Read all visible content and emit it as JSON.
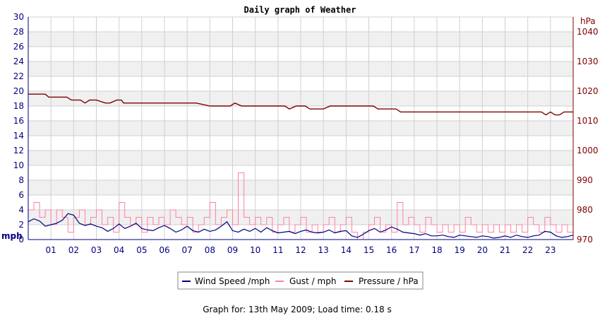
{
  "chart_data": {
    "type": "line",
    "title": "Daily graph of Weather",
    "footer": "Graph for: 13th May 2009; Load time: 0.18 s",
    "x_ticks": [
      "01",
      "02",
      "03",
      "04",
      "05",
      "06",
      "07",
      "08",
      "09",
      "10",
      "11",
      "12",
      "13",
      "14",
      "15",
      "16",
      "17",
      "18",
      "19",
      "20",
      "21",
      "22",
      "23"
    ],
    "x_range_hours": [
      0,
      24
    ],
    "y_left": {
      "unit": "mph",
      "range": [
        0,
        30
      ],
      "ticks": [
        0,
        2,
        4,
        6,
        8,
        10,
        12,
        14,
        16,
        18,
        20,
        22,
        24,
        26,
        28,
        30
      ]
    },
    "y_right": {
      "unit": "hPa",
      "range": [
        970,
        1045
      ],
      "ticks": [
        970,
        980,
        990,
        1000,
        1010,
        1020,
        1030,
        1040
      ]
    },
    "grid": true,
    "legend_position": "bottom-center",
    "colors": {
      "wind": "#000080",
      "gust": "#ff80a0",
      "pressure": "#800000",
      "band": "#f0f0f0",
      "grid": "#d0d0d0"
    },
    "series": [
      {
        "name": "Wind Speed /mph",
        "axis": "left",
        "x": [
          0,
          0.25,
          0.5,
          0.75,
          1,
          1.25,
          1.5,
          1.75,
          2,
          2.25,
          2.5,
          2.75,
          3,
          3.25,
          3.5,
          3.75,
          4,
          4.25,
          4.5,
          4.75,
          5,
          5.25,
          5.5,
          5.75,
          6,
          6.25,
          6.5,
          6.75,
          7,
          7.25,
          7.5,
          7.75,
          8,
          8.25,
          8.5,
          8.75,
          9,
          9.25,
          9.5,
          9.75,
          10,
          10.25,
          10.5,
          10.75,
          11,
          11.25,
          11.5,
          11.75,
          12,
          12.25,
          12.5,
          12.75,
          13,
          13.25,
          13.5,
          13.75,
          14,
          14.25,
          14.5,
          14.75,
          15,
          15.25,
          15.5,
          15.75,
          16,
          16.25,
          16.5,
          16.75,
          17,
          17.25,
          17.5,
          17.75,
          18,
          18.25,
          18.5,
          18.75,
          19,
          19.25,
          19.5,
          19.75,
          20,
          20.25,
          20.5,
          20.75,
          21,
          21.25,
          21.5,
          21.75,
          22,
          22.25,
          22.5,
          22.75,
          23,
          23.25,
          23.5,
          23.75,
          24
        ],
        "y": [
          2.4,
          2.8,
          2.5,
          1.8,
          2.0,
          2.2,
          2.6,
          3.5,
          3.3,
          2.2,
          1.9,
          2.1,
          1.8,
          1.6,
          1.1,
          1.5,
          2.1,
          1.5,
          1.8,
          2.2,
          1.5,
          1.3,
          1.2,
          1.6,
          1.9,
          1.5,
          1.0,
          1.3,
          1.8,
          1.2,
          1.0,
          1.4,
          1.1,
          1.3,
          1.8,
          2.4,
          1.2,
          1.0,
          1.4,
          1.1,
          1.5,
          1.0,
          1.6,
          1.2,
          0.9,
          1.0,
          1.1,
          0.8,
          1.1,
          1.3,
          1.0,
          0.9,
          1.0,
          1.3,
          0.9,
          1.1,
          1.2,
          0.5,
          0.3,
          0.7,
          1.2,
          1.5,
          1.0,
          1.3,
          1.7,
          1.4,
          1.0,
          0.9,
          0.8,
          0.6,
          0.8,
          0.5,
          0.5,
          0.6,
          0.4,
          0.3,
          0.6,
          0.5,
          0.4,
          0.3,
          0.5,
          0.4,
          0.2,
          0.3,
          0.5,
          0.3,
          0.6,
          0.4,
          0.3,
          0.5,
          0.6,
          1.1,
          1.0,
          0.5,
          0.3,
          0.4,
          0.6
        ]
      },
      {
        "name": "Gust / mph",
        "axis": "left",
        "x": [
          0,
          0.25,
          0.5,
          0.75,
          1,
          1.25,
          1.5,
          1.75,
          2,
          2.25,
          2.5,
          2.75,
          3,
          3.25,
          3.5,
          3.75,
          4,
          4.25,
          4.5,
          4.75,
          5,
          5.25,
          5.5,
          5.75,
          6,
          6.25,
          6.5,
          6.75,
          7,
          7.25,
          7.5,
          7.75,
          8,
          8.25,
          8.5,
          8.75,
          9,
          9.25,
          9.5,
          9.75,
          10,
          10.25,
          10.5,
          10.75,
          11,
          11.25,
          11.5,
          11.75,
          12,
          12.25,
          12.5,
          12.75,
          13,
          13.25,
          13.5,
          13.75,
          14,
          14.25,
          14.5,
          14.75,
          15,
          15.25,
          15.5,
          15.75,
          16,
          16.25,
          16.5,
          16.75,
          17,
          17.25,
          17.5,
          17.75,
          18,
          18.25,
          18.5,
          18.75,
          19,
          19.25,
          19.5,
          19.75,
          20,
          20.25,
          20.5,
          20.75,
          21,
          21.25,
          21.5,
          21.75,
          22,
          22.25,
          22.5,
          22.75,
          23,
          23.25,
          23.5,
          23.75,
          24
        ],
        "y": [
          4,
          5,
          3,
          4,
          2,
          4,
          3,
          1,
          3,
          4,
          2,
          3,
          4,
          2,
          3,
          1,
          5,
          3,
          2,
          3,
          1,
          3,
          2,
          3,
          2,
          4,
          3,
          2,
          3,
          1,
          2,
          3,
          5,
          2,
          3,
          4,
          2,
          9,
          3,
          2,
          3,
          2,
          3,
          1,
          2,
          3,
          1,
          2,
          3,
          1,
          2,
          1,
          2,
          3,
          1,
          2,
          3,
          1,
          0,
          1,
          2,
          3,
          1,
          2,
          1,
          5,
          2,
          3,
          2,
          1,
          3,
          2,
          1,
          2,
          1,
          2,
          1,
          3,
          2,
          1,
          2,
          1,
          2,
          1,
          2,
          1,
          2,
          1,
          3,
          2,
          1,
          3,
          2,
          1,
          2,
          1,
          2
        ]
      },
      {
        "name": "Pressure / hPa",
        "axis": "right",
        "x": [
          0,
          0.75,
          0.9,
          1.7,
          1.9,
          2.3,
          2.5,
          2.7,
          3.0,
          3.4,
          3.6,
          3.9,
          4.1,
          4.2,
          4.4,
          7.1,
          7.4,
          8.0,
          8.3,
          8.9,
          9.1,
          9.4,
          10.0,
          10.4,
          11.3,
          11.5,
          11.8,
          12.2,
          12.4,
          12.7,
          13.0,
          13.3,
          13.5,
          14.5,
          15.2,
          15.4,
          15.9,
          16.2,
          16.4,
          17.0,
          22.6,
          22.8,
          23.0,
          23.2,
          23.4,
          23.6,
          24.0
        ],
        "y": [
          1019,
          1019,
          1018,
          1018,
          1017,
          1017,
          1016,
          1017,
          1017,
          1016,
          1016,
          1017,
          1017,
          1016,
          1016,
          1016,
          1016,
          1015,
          1015,
          1015,
          1016,
          1015,
          1015,
          1015,
          1015,
          1014,
          1015,
          1015,
          1014,
          1014,
          1014,
          1015,
          1015,
          1015,
          1015,
          1014,
          1014,
          1014,
          1013,
          1013,
          1013,
          1012,
          1013,
          1012,
          1012,
          1013,
          1013
        ]
      }
    ]
  }
}
